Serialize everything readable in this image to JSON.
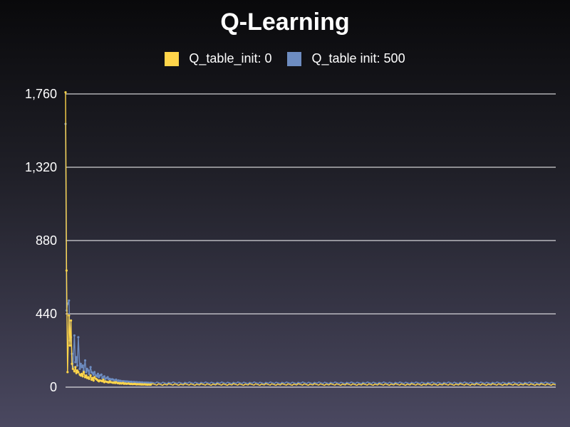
{
  "chart_data": {
    "type": "line",
    "title": "Q-Learning",
    "ylim": [
      0,
      1760
    ],
    "yticks": [
      "0",
      "440",
      "880",
      "1,320",
      "1,760"
    ],
    "yticks_values": [
      0,
      440,
      880,
      1320,
      1760
    ],
    "grid": true,
    "legend_placement": "top",
    "x_count": 1000,
    "series": [
      {
        "name": "Q_table_init: 0",
        "color": "#ffd54a",
        "values": [
          1770,
          700,
          90,
          430,
          250,
          400,
          140,
          110,
          95,
          120,
          85,
          100,
          90,
          75,
          70,
          80,
          65,
          90,
          60,
          70,
          55,
          60,
          50,
          70,
          45,
          55,
          40,
          60,
          50,
          45,
          40,
          35,
          40,
          38,
          35,
          45,
          30,
          35,
          32,
          30,
          28,
          35,
          30,
          28,
          26,
          28,
          25,
          30,
          24,
          25,
          22,
          24,
          22,
          25,
          20,
          22,
          21,
          20,
          22,
          20,
          19,
          20,
          18,
          19,
          20,
          18,
          17,
          18,
          17,
          18,
          16,
          17,
          16,
          17,
          16,
          16,
          15,
          16,
          15,
          16
        ]
      },
      {
        "name": "Q_table init: 500",
        "color": "#6d8cc0",
        "values": [
          1580,
          460,
          500,
          520,
          280,
          300,
          200,
          120,
          310,
          150,
          180,
          130,
          300,
          110,
          140,
          120,
          130,
          100,
          160,
          90,
          110,
          100,
          80,
          120,
          90,
          85,
          75,
          90,
          70,
          65,
          80,
          60,
          70,
          75,
          55,
          60,
          65,
          50,
          55,
          60,
          48,
          50,
          45,
          48,
          45,
          42,
          40,
          45,
          38,
          40,
          36,
          38,
          35,
          36,
          34,
          35,
          33,
          34,
          33,
          32,
          31,
          32,
          30,
          31,
          30,
          29,
          30,
          28,
          29,
          28,
          27,
          28,
          27,
          27,
          26,
          27,
          26,
          26,
          25,
          26
        ]
      }
    ]
  }
}
